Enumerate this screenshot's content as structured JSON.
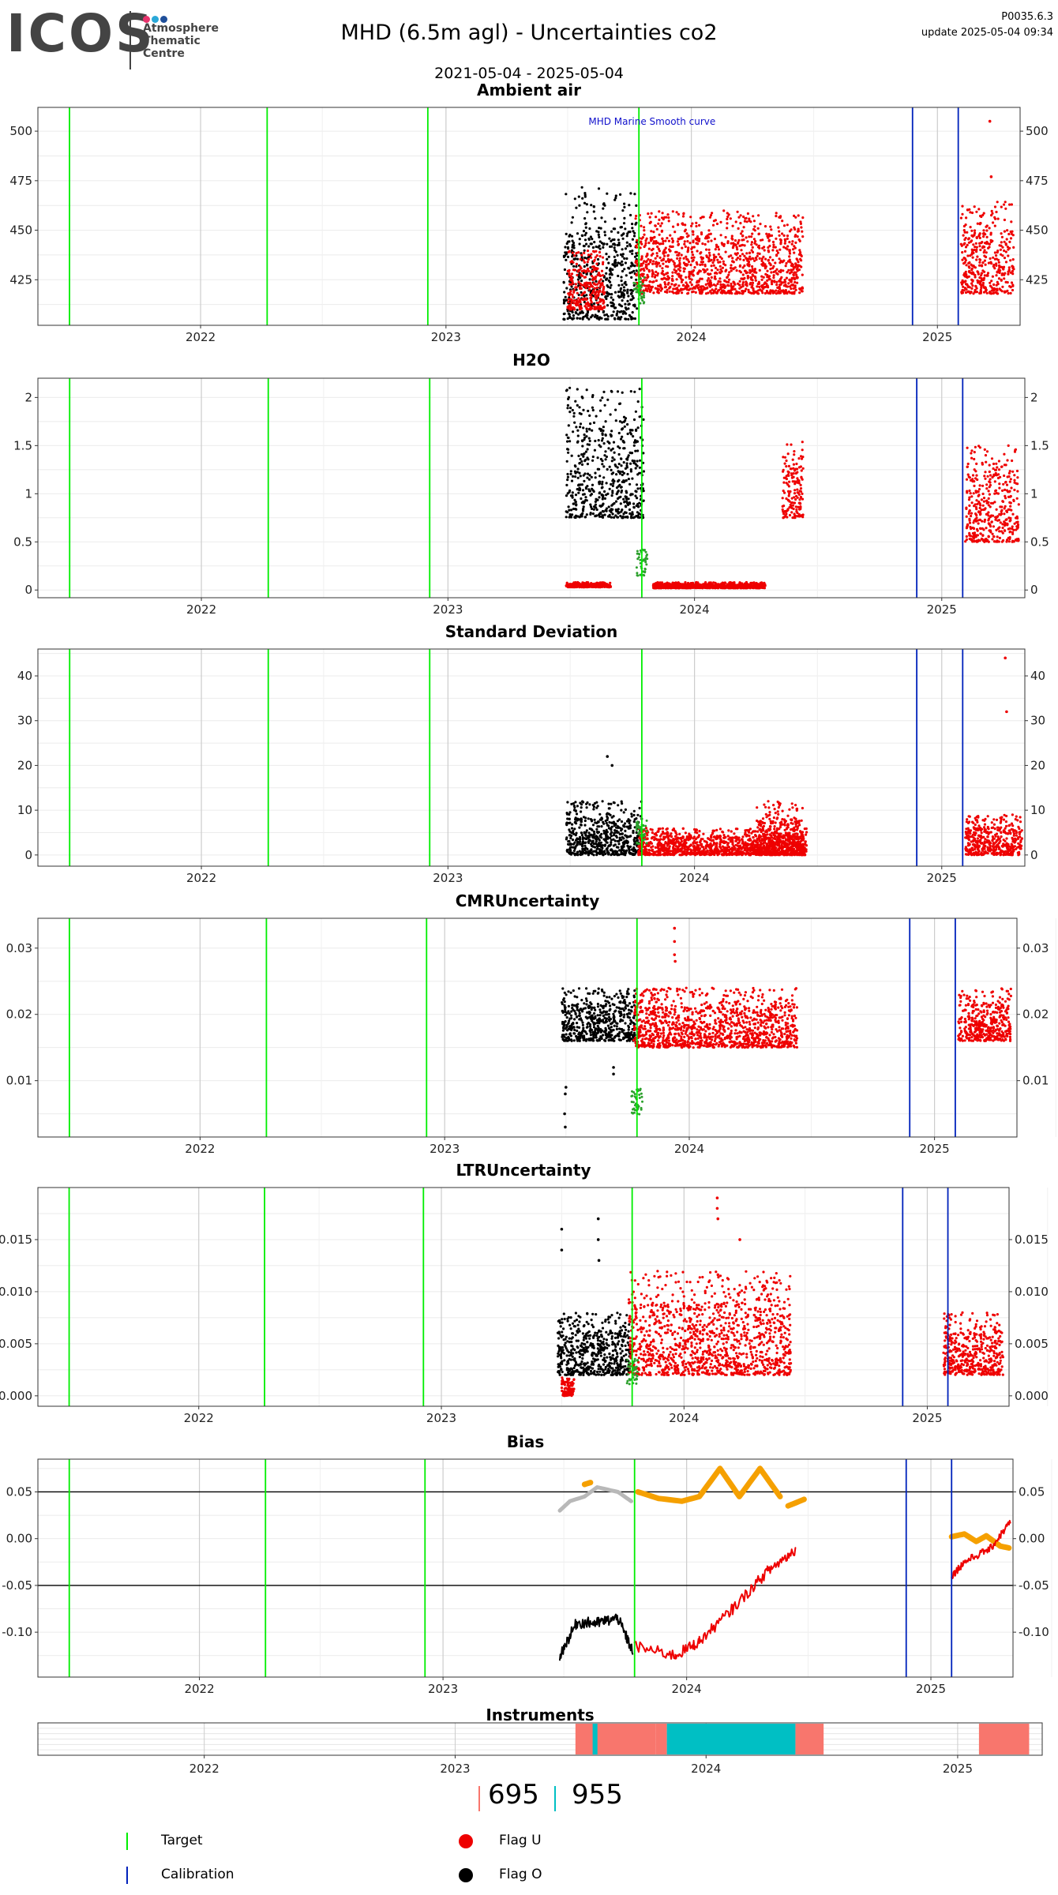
{
  "header": {
    "logo_word": "ICOS",
    "logo_lines": [
      "Atmosphere",
      "Thematic",
      "Centre"
    ],
    "logo_colors": [
      "#e8336d",
      "#2aa8d8",
      "#1f4f9a"
    ],
    "title": "MHD  (6.5m agl) - Uncertainties co2",
    "code": "P0035.6.3",
    "update": "update  2025-05-04 09:34",
    "daterange": "2021-05-04 - 2025-05-04"
  },
  "colors": {
    "target": "#00ee00",
    "calibration": "#0022bb",
    "flag_u": "#ee0000",
    "flag_o": "#000000",
    "flag_n": "#2ca02c",
    "bias_orange": "#f5a000",
    "bias_grey": "#b8b8b8",
    "instr_a": "#f8766d",
    "instr_b": "#00bfc4"
  },
  "chart_data": [
    {
      "type": "scatter",
      "title": "Ambient air",
      "annotation": "MHD Marine Smooth curve",
      "ylim": [
        402,
        512
      ],
      "yticks": [
        425,
        450,
        475,
        500
      ],
      "xticks": [
        "2022",
        "2023",
        "2024",
        "2025"
      ],
      "xlim": [
        "2021-05-04",
        "2025-05-04"
      ],
      "target_lines": [
        "2021-06-20",
        "2022-04-10",
        "2022-12-05",
        "2023-10-15"
      ],
      "calibration_lines": [
        "2024-11-25",
        "2025-02-01"
      ],
      "series": [
        {
          "flag": "O",
          "segments": [
            [
              "2023-06-25",
              "2023-10-12",
              405,
              472
            ]
          ]
        },
        {
          "flag": "U",
          "segments": [
            [
              "2023-07-01",
              "2023-08-25",
              410,
              440
            ],
            [
              "2023-10-10",
              "2024-06-15",
              418,
              460
            ],
            [
              "2025-02-05",
              "2025-04-25",
              418,
              465
            ]
          ],
          "outliers": [
            [
              "2025-03-20",
              505
            ],
            [
              "2025-03-22",
              477
            ]
          ]
        }
      ]
    },
    {
      "type": "scatter",
      "title": "H2O",
      "ylim": [
        -0.08,
        2.2
      ],
      "yticks": [
        0.0,
        0.5,
        1.0,
        1.5,
        2.0
      ],
      "xticks": [
        "2022",
        "2023",
        "2024",
        "2025"
      ],
      "xlim": [
        "2021-05-04",
        "2025-05-04"
      ],
      "target_lines": [
        "2021-06-20",
        "2022-04-10",
        "2022-12-05",
        "2023-10-15"
      ],
      "calibration_lines": [
        "2024-11-25",
        "2025-02-01"
      ],
      "series": [
        {
          "flag": "O",
          "segments": [
            [
              "2023-06-25",
              "2023-10-18",
              0.75,
              2.1
            ]
          ]
        },
        {
          "flag": "U",
          "segments": [
            [
              "2023-06-25",
              "2023-08-30",
              0.03,
              0.08
            ],
            [
              "2023-11-01",
              "2024-04-15",
              0.02,
              0.08
            ],
            [
              "2024-05-10",
              "2024-06-10",
              0.75,
              1.55
            ],
            [
              "2025-02-05",
              "2025-04-25",
              0.5,
              1.5
            ]
          ]
        }
      ]
    },
    {
      "type": "scatter",
      "title": "Standard Deviation",
      "ylim": [
        -2.5,
        46
      ],
      "yticks": [
        0,
        10,
        20,
        30,
        40
      ],
      "xticks": [
        "2022",
        "2023",
        "2024",
        "2025"
      ],
      "xlim": [
        "2021-05-04",
        "2025-05-04"
      ],
      "target_lines": [
        "2021-06-20",
        "2022-04-10",
        "2022-12-05",
        "2023-10-15"
      ],
      "calibration_lines": [
        "2024-11-25",
        "2025-02-01"
      ],
      "series": [
        {
          "flag": "O",
          "segments": [
            [
              "2023-06-25",
              "2023-10-15",
              0,
              12
            ]
          ],
          "outliers": [
            [
              "2023-08-25",
              22
            ],
            [
              "2023-09-01",
              20
            ]
          ]
        },
        {
          "flag": "U",
          "segments": [
            [
              "2023-10-10",
              "2024-06-15",
              0,
              6
            ],
            [
              "2024-04-01",
              "2024-06-10",
              0,
              12
            ],
            [
              "2025-02-05",
              "2025-04-30",
              0,
              9
            ]
          ],
          "outliers": [
            [
              "2025-04-05",
              44
            ],
            [
              "2025-04-07",
              32
            ]
          ]
        }
      ]
    },
    {
      "type": "scatter",
      "title": "CMRUncertainty",
      "ylim": [
        0.0015,
        0.0345
      ],
      "yticks": [
        0.01,
        0.02,
        0.03
      ],
      "xticks": [
        "2022",
        "2023",
        "2024",
        "2025"
      ],
      "xlim": [
        "2021-05-04",
        "2025-05-04"
      ],
      "target_lines": [
        "2021-06-20",
        "2022-04-10",
        "2022-12-05",
        "2023-10-15"
      ],
      "calibration_lines": [
        "2024-11-25",
        "2025-02-01"
      ],
      "series": [
        {
          "flag": "O",
          "segments": [
            [
              "2023-06-25",
              "2023-10-12",
              0.016,
              0.024
            ]
          ],
          "outliers": [
            [
              "2023-06-30",
              0.003
            ],
            [
              "2023-06-29",
              0.005
            ],
            [
              "2023-06-30",
              0.008
            ],
            [
              "2023-06-31",
              0.009
            ],
            [
              "2023-09-10",
              0.011
            ],
            [
              "2023-09-10",
              0.012
            ]
          ]
        },
        {
          "flag": "U",
          "segments": [
            [
              "2023-10-10",
              "2024-06-10",
              0.015,
              0.024
            ],
            [
              "2025-02-05",
              "2025-04-25",
              0.016,
              0.024
            ]
          ],
          "outliers": [
            [
              "2023-12-10",
              0.033
            ],
            [
              "2023-12-10",
              0.031
            ],
            [
              "2023-12-10",
              0.029
            ],
            [
              "2023-12-11",
              0.028
            ]
          ]
        }
      ]
    },
    {
      "type": "scatter",
      "title": "LTRUncertainty",
      "ylim": [
        -0.001,
        0.02
      ],
      "yticks": [
        0.0,
        0.005,
        0.01,
        0.015
      ],
      "yticklabels": [
        "0.000",
        "0.005",
        "0.010",
        "0.015"
      ],
      "xticks": [
        "2022",
        "2023",
        "2024",
        "2025"
      ],
      "xlim": [
        "2021-05-04",
        "2025-05-04"
      ],
      "target_lines": [
        "2021-06-20",
        "2022-04-10",
        "2022-12-05",
        "2023-10-15"
      ],
      "calibration_lines": [
        "2024-11-25",
        "2025-02-01"
      ],
      "series": [
        {
          "flag": "O",
          "segments": [
            [
              "2023-06-25",
              "2023-10-12",
              0.002,
              0.008
            ]
          ],
          "outliers": [
            [
              "2023-07-01",
              0.016
            ],
            [
              "2023-07-01",
              0.014
            ],
            [
              "2023-08-25",
              0.017
            ],
            [
              "2023-08-25",
              0.015
            ],
            [
              "2023-08-26",
              0.013
            ]
          ]
        },
        {
          "flag": "U",
          "segments": [
            [
              "2023-07-01",
              "2023-07-20",
              0.0,
              0.002
            ],
            [
              "2023-10-10",
              "2024-06-10",
              0.002,
              0.012
            ],
            [
              "2025-01-25",
              "2025-04-25",
              0.002,
              0.008
            ]
          ],
          "outliers": [
            [
              "2024-02-20",
              0.019
            ],
            [
              "2024-02-20",
              0.018
            ],
            [
              "2024-02-21",
              0.017
            ],
            [
              "2024-03-25",
              0.015
            ]
          ]
        }
      ]
    },
    {
      "type": "line",
      "title": "Bias",
      "ylim": [
        -0.148,
        0.085
      ],
      "yticks": [
        -0.1,
        -0.05,
        0.0,
        0.05
      ],
      "yticklabels": [
        "-0.10",
        "-0.05",
        "0.00",
        "0.05"
      ],
      "hlines": [
        0.05,
        -0.05
      ],
      "xticks": [
        "2022",
        "2023",
        "2024",
        "2025"
      ],
      "xlim": [
        "2021-05-04",
        "2025-05-04"
      ],
      "target_lines": [
        "2021-06-20",
        "2022-04-10",
        "2022-12-05",
        "2023-10-15"
      ],
      "calibration_lines": [
        "2024-11-25",
        "2025-02-01"
      ],
      "series": [
        {
          "name": "",
          "color_key": "bias_orange",
          "points": [
            [
              "2023-08-01",
              0.058
            ],
            [
              "2023-08-10",
              0.06
            ]
          ]
        },
        {
          "name": "",
          "color_key": "bias_orange",
          "points": [
            [
              "2023-10-20",
              0.05
            ],
            [
              "2023-11-20",
              0.043
            ],
            [
              "2023-12-25",
              0.04
            ],
            [
              "2024-01-20",
              0.045
            ],
            [
              "2024-02-20",
              0.075
            ],
            [
              "2024-03-20",
              0.045
            ],
            [
              "2024-04-20",
              0.075
            ],
            [
              "2024-05-20",
              0.045
            ]
          ]
        },
        {
          "name": "",
          "color_key": "bias_orange",
          "points": [
            [
              "2024-06-01",
              0.035
            ],
            [
              "2024-06-25",
              0.042
            ]
          ]
        },
        {
          "name": "",
          "color_key": "bias_orange",
          "points": [
            [
              "2025-02-01",
              0.002
            ],
            [
              "2025-02-20",
              0.005
            ],
            [
              "2025-03-10",
              -0.003
            ],
            [
              "2025-03-25",
              0.003
            ],
            [
              "2025-04-15",
              -0.008
            ],
            [
              "2025-04-28",
              -0.01
            ]
          ]
        },
        {
          "name": "",
          "color_key": "bias_grey",
          "points": [
            [
              "2023-06-25",
              0.03
            ],
            [
              "2023-07-10",
              0.04
            ],
            [
              "2023-08-01",
              0.045
            ],
            [
              "2023-08-20",
              0.055
            ],
            [
              "2023-09-20",
              0.05
            ],
            [
              "2023-10-10",
              0.04
            ]
          ]
        },
        {
          "name": "",
          "color_key": "flag_o",
          "noise": 0.006,
          "points": [
            [
              "2023-06-25",
              -0.125
            ],
            [
              "2023-07-20",
              -0.09
            ],
            [
              "2023-08-20",
              -0.09
            ],
            [
              "2023-09-20",
              -0.085
            ],
            [
              "2023-10-12",
              -0.12
            ]
          ]
        },
        {
          "name": "",
          "color_key": "flag_u",
          "noise": 0.006,
          "points": [
            [
              "2023-10-15",
              -0.115
            ],
            [
              "2023-12-15",
              -0.125
            ],
            [
              "2024-01-20",
              -0.11
            ],
            [
              "2024-03-10",
              -0.075
            ],
            [
              "2024-05-01",
              -0.035
            ],
            [
              "2024-06-12",
              -0.012
            ]
          ]
        },
        {
          "name": "",
          "color_key": "flag_u",
          "noise": 0.004,
          "points": [
            [
              "2025-02-01",
              -0.04
            ],
            [
              "2025-02-20",
              -0.025
            ],
            [
              "2025-04-01",
              -0.01
            ],
            [
              "2025-04-30",
              0.018
            ]
          ]
        }
      ]
    }
  ],
  "instruments": {
    "title": "Instruments",
    "xticks": [
      "2022",
      "2023",
      "2024",
      "2025"
    ],
    "xlim": [
      "2021-05-04",
      "2025-05-04"
    ],
    "bars": [
      {
        "start": "2023-06-25",
        "end": "2023-10-20",
        "color_key": "instr_a"
      },
      {
        "start": "2023-07-20",
        "end": "2023-07-27",
        "color_key": "instr_b"
      },
      {
        "start": "2023-10-20",
        "end": "2023-11-05",
        "color_key": "instr_a"
      },
      {
        "start": "2023-11-05",
        "end": "2024-05-10",
        "color_key": "instr_b"
      },
      {
        "start": "2024-05-10",
        "end": "2024-06-20",
        "color_key": "instr_a"
      },
      {
        "start": "2025-02-01",
        "end": "2025-04-15",
        "color_key": "instr_a"
      }
    ],
    "legend": [
      {
        "label": "695",
        "color_key": "instr_a"
      },
      {
        "label": "955",
        "color_key": "instr_b"
      }
    ]
  },
  "legend": {
    "target": "Target",
    "calibration": "Calibration",
    "flag_u": "Flag U",
    "flag_o": "Flag O"
  }
}
